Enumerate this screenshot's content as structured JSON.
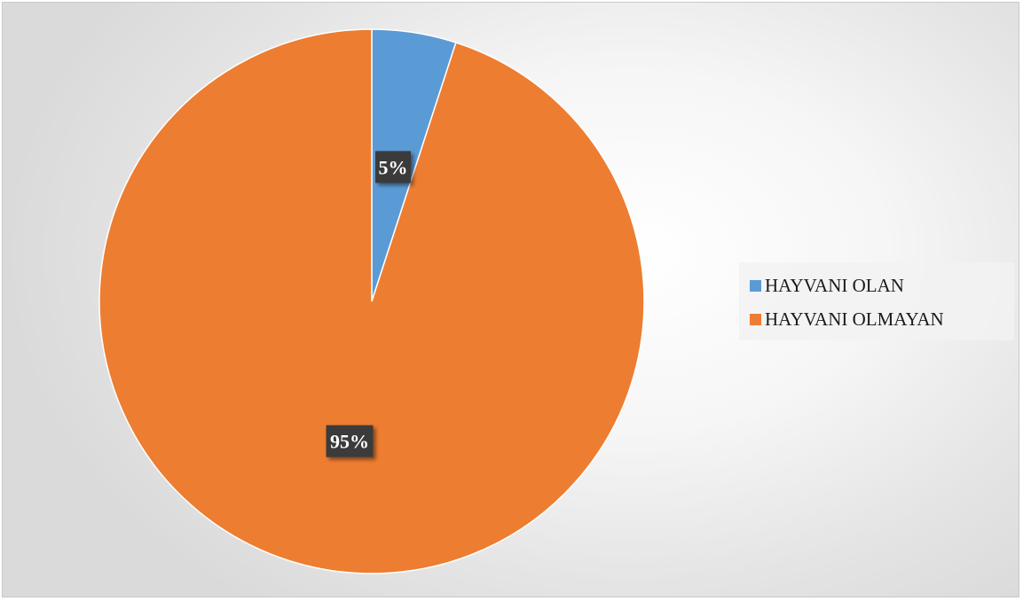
{
  "chart_data": {
    "type": "pie",
    "categories": [
      "HAYVANI OLAN",
      "HAYVANI OLMAYAN"
    ],
    "values": [
      5,
      95
    ],
    "data_labels": [
      "5%",
      "95%"
    ],
    "colors": [
      "#5b9bd5",
      "#ed7d31"
    ],
    "start_angle_deg": 0,
    "direction": "clockwise",
    "legend_position": "right",
    "title": ""
  },
  "legend": {
    "items": [
      {
        "label": "HAYVANI OLAN",
        "color": "#5b9bd5"
      },
      {
        "label": "HAYVANI OLMAYAN",
        "color": "#ed7d31"
      }
    ]
  }
}
